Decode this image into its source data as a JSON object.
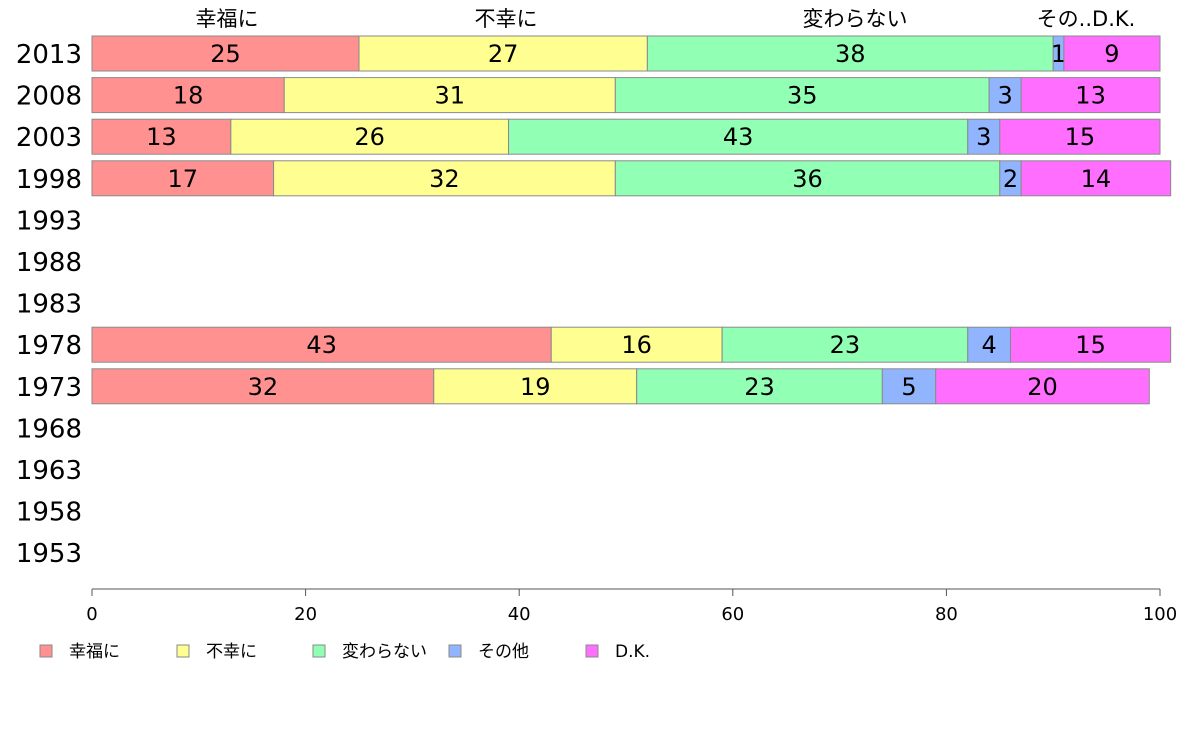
{
  "chart_data": {
    "type": "bar",
    "orientation": "horizontal",
    "stacked": true,
    "header_labels": [
      "幸福に",
      "不幸に",
      "変わらない",
      "その..D.K."
    ],
    "categories": [
      "2013",
      "2008",
      "2003",
      "1998",
      "1993",
      "1988",
      "1983",
      "1978",
      "1973",
      "1968",
      "1963",
      "1958",
      "1953"
    ],
    "series": [
      {
        "name": "幸福に",
        "color": "#ff9191",
        "values": [
          25,
          18,
          13,
          17,
          null,
          null,
          null,
          43,
          32,
          null,
          null,
          null,
          null
        ]
      },
      {
        "name": "不幸に",
        "color": "#ffff91",
        "values": [
          27,
          31,
          26,
          32,
          null,
          null,
          null,
          16,
          19,
          null,
          null,
          null,
          null
        ]
      },
      {
        "name": "変わらない",
        "color": "#91ffb4",
        "values": [
          38,
          35,
          43,
          36,
          null,
          null,
          null,
          23,
          23,
          null,
          null,
          null,
          null
        ]
      },
      {
        "name": "その他",
        "color": "#91b4ff",
        "values": [
          1,
          3,
          3,
          2,
          null,
          null,
          null,
          4,
          5,
          null,
          null,
          null,
          null
        ]
      },
      {
        "name": "D.K.",
        "color": "#ff6eff",
        "values": [
          9,
          13,
          15,
          14,
          null,
          null,
          null,
          15,
          20,
          null,
          null,
          null,
          null
        ]
      }
    ],
    "xlim": [
      0,
      100
    ],
    "xticks": [
      "0",
      "20",
      "40",
      "60",
      "80",
      "100"
    ],
    "legend_position": "bottom-left",
    "grid": false
  }
}
